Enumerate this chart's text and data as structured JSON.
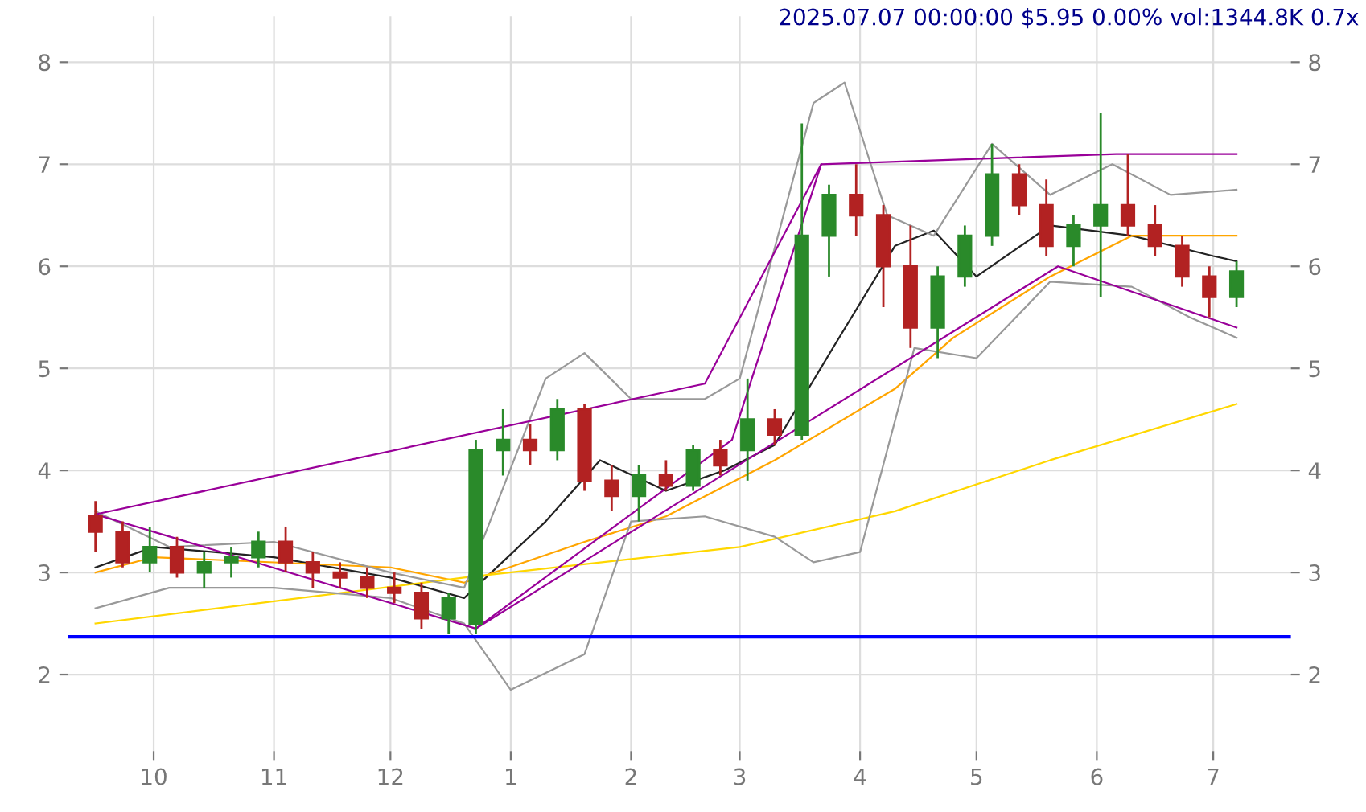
{
  "chart_data": {
    "type": "candlestick",
    "title": "2025.07.07 00:00:00 $5.95 0.00% vol:1344.8K 0.7x",
    "x": [
      "2024-09-16",
      "2024-09-23",
      "2024-09-30",
      "2024-10-07",
      "2024-10-14",
      "2024-10-21",
      "2024-10-28",
      "2024-11-04",
      "2024-11-11",
      "2024-11-18",
      "2024-11-25",
      "2024-12-02",
      "2024-12-09",
      "2024-12-16",
      "2024-12-23",
      "2024-12-30",
      "2025-01-06",
      "2025-01-13",
      "2025-01-20",
      "2025-01-27",
      "2025-02-03",
      "2025-02-10",
      "2025-02-17",
      "2025-02-24",
      "2025-03-03",
      "2025-03-10",
      "2025-03-17",
      "2025-03-24",
      "2025-03-31",
      "2025-04-07",
      "2025-04-14",
      "2025-04-21",
      "2025-04-28",
      "2025-05-05",
      "2025-05-12",
      "2025-05-19",
      "2025-05-26",
      "2025-06-02",
      "2025-06-09",
      "2025-06-16",
      "2025-06-23",
      "2025-06-30",
      "2025-07-07"
    ],
    "ohlc": [
      [
        3.55,
        3.7,
        3.2,
        3.4
      ],
      [
        3.4,
        3.5,
        3.05,
        3.1
      ],
      [
        3.1,
        3.45,
        3.0,
        3.25
      ],
      [
        3.25,
        3.35,
        2.95,
        3.0
      ],
      [
        3.0,
        3.2,
        2.85,
        3.1
      ],
      [
        3.1,
        3.25,
        2.95,
        3.15
      ],
      [
        3.15,
        3.4,
        3.05,
        3.3
      ],
      [
        3.3,
        3.45,
        3.0,
        3.1
      ],
      [
        3.1,
        3.2,
        2.85,
        3.0
      ],
      [
        3.0,
        3.1,
        2.85,
        2.95
      ],
      [
        2.95,
        3.05,
        2.75,
        2.85
      ],
      [
        2.85,
        3.0,
        2.7,
        2.8
      ],
      [
        2.8,
        2.9,
        2.45,
        2.55
      ],
      [
        2.55,
        2.8,
        2.4,
        2.75
      ],
      [
        2.5,
        4.3,
        2.4,
        4.2
      ],
      [
        4.2,
        4.6,
        3.95,
        4.3
      ],
      [
        4.3,
        4.45,
        4.05,
        4.2
      ],
      [
        4.2,
        4.7,
        4.1,
        4.6
      ],
      [
        4.6,
        4.65,
        3.8,
        3.9
      ],
      [
        3.9,
        4.05,
        3.6,
        3.75
      ],
      [
        3.75,
        4.05,
        3.5,
        3.95
      ],
      [
        3.95,
        4.1,
        3.8,
        3.85
      ],
      [
        3.85,
        4.25,
        3.8,
        4.2
      ],
      [
        4.2,
        4.3,
        3.95,
        4.05
      ],
      [
        4.2,
        4.9,
        3.9,
        4.5
      ],
      [
        4.5,
        4.6,
        4.25,
        4.35
      ],
      [
        4.35,
        7.4,
        4.3,
        6.3
      ],
      [
        6.3,
        6.8,
        5.9,
        6.7
      ],
      [
        6.7,
        7.0,
        6.3,
        6.5
      ],
      [
        6.5,
        6.6,
        5.6,
        6.0
      ],
      [
        6.0,
        6.4,
        5.2,
        5.4
      ],
      [
        5.4,
        6.0,
        5.1,
        5.9
      ],
      [
        5.9,
        6.4,
        5.8,
        6.3
      ],
      [
        6.3,
        7.2,
        6.2,
        6.9
      ],
      [
        6.9,
        7.0,
        6.5,
        6.6
      ],
      [
        6.6,
        6.85,
        6.1,
        6.2
      ],
      [
        6.2,
        6.5,
        6.0,
        6.4
      ],
      [
        6.4,
        7.5,
        5.7,
        6.6
      ],
      [
        6.6,
        7.1,
        6.3,
        6.4
      ],
      [
        6.4,
        6.6,
        6.1,
        6.2
      ],
      [
        6.2,
        6.3,
        5.8,
        5.9
      ],
      [
        5.9,
        6.0,
        5.5,
        5.7
      ],
      [
        5.7,
        6.05,
        5.6,
        5.95
      ]
    ],
    "series": [
      {
        "type": "line",
        "color": "#222222",
        "x": [
          "2024-09-16",
          "2024-10-01",
          "2024-11-01",
          "2024-12-01",
          "2024-12-20",
          "2025-01-10",
          "2025-01-24",
          "2025-02-10",
          "2025-02-25",
          "2025-03-10",
          "2025-03-25",
          "2025-04-10",
          "2025-04-20",
          "2025-05-01",
          "2025-05-20",
          "2025-06-10",
          "2025-07-01",
          "2025-07-07"
        ],
        "values": [
          3.05,
          3.25,
          3.15,
          2.95,
          2.75,
          3.5,
          4.1,
          3.8,
          4.0,
          4.25,
          5.2,
          6.2,
          6.35,
          5.9,
          6.4,
          6.3,
          6.1,
          6.05
        ]
      },
      {
        "type": "line",
        "color": "#ffa500",
        "x": [
          "2024-09-16",
          "2024-10-01",
          "2024-12-01",
          "2024-12-20",
          "2025-01-20",
          "2025-02-10",
          "2025-03-10",
          "2025-04-10",
          "2025-04-25",
          "2025-05-20",
          "2025-06-10",
          "2025-07-07"
        ],
        "values": [
          3.0,
          3.15,
          3.05,
          2.9,
          3.3,
          3.55,
          4.1,
          4.8,
          5.3,
          5.9,
          6.3,
          6.3
        ]
      },
      {
        "type": "line",
        "color": "#ffd700",
        "x": [
          "2024-09-16",
          "2024-12-20",
          "2025-03-01",
          "2025-04-10",
          "2025-05-20",
          "2025-07-07"
        ],
        "values": [
          2.5,
          2.95,
          3.25,
          3.6,
          4.1,
          4.65
        ]
      },
      {
        "type": "line",
        "color": "#999999",
        "x": [
          "2024-09-16",
          "2024-10-05",
          "2024-11-01",
          "2024-12-01",
          "2024-12-20",
          "2025-01-10",
          "2025-01-20",
          "2025-02-01",
          "2025-02-20",
          "2025-03-01",
          "2025-03-20",
          "2025-03-28",
          "2025-04-08",
          "2025-04-20",
          "2025-05-05",
          "2025-05-20",
          "2025-06-05",
          "2025-06-20",
          "2025-07-07"
        ],
        "values": [
          3.6,
          3.25,
          3.3,
          3.0,
          2.85,
          4.9,
          5.15,
          4.7,
          4.7,
          4.9,
          7.6,
          7.8,
          6.5,
          6.3,
          7.2,
          6.7,
          7.0,
          6.7,
          6.75
        ]
      },
      {
        "type": "line",
        "color": "#999999",
        "x": [
          "2024-09-16",
          "2024-10-05",
          "2024-11-01",
          "2024-12-01",
          "2024-12-20",
          "2025-01-01",
          "2025-01-20",
          "2025-02-01",
          "2025-02-20",
          "2025-03-10",
          "2025-03-20",
          "2025-04-01",
          "2025-04-15",
          "2025-05-01",
          "2025-05-20",
          "2025-06-10",
          "2025-06-25",
          "2025-07-07"
        ],
        "values": [
          2.65,
          2.85,
          2.85,
          2.75,
          2.5,
          1.85,
          2.2,
          3.5,
          3.55,
          3.35,
          3.1,
          3.2,
          5.2,
          5.1,
          5.85,
          5.8,
          5.5,
          5.3
        ]
      },
      {
        "type": "line",
        "color": "#990099",
        "x": [
          "2024-09-16",
          "2025-02-20",
          "2025-03-22",
          "2025-06-06",
          "2025-07-07"
        ],
        "values": [
          3.57,
          4.85,
          7.0,
          7.1,
          7.1
        ]
      },
      {
        "type": "line",
        "color": "#990099",
        "x": [
          "2024-09-16",
          "2024-12-23",
          "2025-02-27",
          "2025-03-22"
        ],
        "values": [
          3.57,
          2.45,
          4.3,
          7.0
        ]
      },
      {
        "type": "line",
        "color": "#990099",
        "x": [
          "2024-12-23",
          "2025-05-22",
          "2025-07-07"
        ],
        "values": [
          2.45,
          6.0,
          5.4
        ]
      }
    ],
    "ref_lines": [
      {
        "axis": "y",
        "value": 2.37,
        "color": "#0000ff"
      }
    ],
    "xlim": [
      "2024-09-09",
      "2025-07-21"
    ],
    "xticks": [
      {
        "value": "2024-10-01",
        "label": "10"
      },
      {
        "value": "2024-11-01",
        "label": "11"
      },
      {
        "value": "2024-12-01",
        "label": "12"
      },
      {
        "value": "2025-01-01",
        "label": "1"
      },
      {
        "value": "2025-02-01",
        "label": "2"
      },
      {
        "value": "2025-03-01",
        "label": "3"
      },
      {
        "value": "2025-04-01",
        "label": "4"
      },
      {
        "value": "2025-05-01",
        "label": "5"
      },
      {
        "value": "2025-06-01",
        "label": "6"
      },
      {
        "value": "2025-07-01",
        "label": "7"
      }
    ],
    "ylim": [
      1.25,
      8.45
    ],
    "yticks": [
      2,
      3,
      4,
      5,
      6,
      7,
      8
    ],
    "y2lim": [
      1.25,
      8.45
    ],
    "y2ticks": [
      2,
      3,
      4,
      5,
      6,
      7,
      8
    ],
    "grid": true
  }
}
